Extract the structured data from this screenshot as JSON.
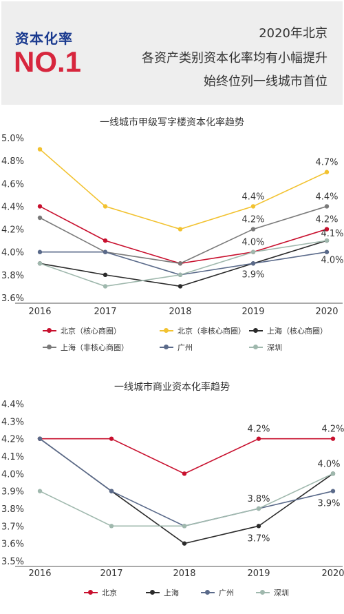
{
  "header": {
    "badge_title": "资本化率",
    "badge_rank": "NO.1",
    "lines": [
      "2020年北京",
      "各资产类别资本化率均有小幅提升",
      "始终位列一线城市首位"
    ]
  },
  "chart_data": [
    {
      "type": "line",
      "title": "一线城市甲级写字楼资本化率趋势",
      "categories": [
        "2016",
        "2017",
        "2018",
        "2019",
        "2020"
      ],
      "ylim": [
        3.6,
        5.0
      ],
      "yticks": [
        "5.0%",
        "4.8%",
        "4.6%",
        "4.4%",
        "4.2%",
        "4.0%",
        "3.8%",
        "3.6%"
      ],
      "grid": false,
      "legend_position": "bottom",
      "series": [
        {
          "name": "北京（核心商圈）",
          "color": "#c8102e",
          "values": [
            4.4,
            4.1,
            3.9,
            4.0,
            4.2
          ]
        },
        {
          "name": "北京（非核心商圈）",
          "color": "#f2c230",
          "values": [
            4.9,
            4.4,
            4.2,
            4.4,
            4.7
          ]
        },
        {
          "name": "上海（核心商圈）",
          "color": "#2b2b2b",
          "values": [
            3.9,
            3.8,
            3.7,
            3.9,
            4.1
          ]
        },
        {
          "name": "上海（非核心商圈）",
          "color": "#7a7a7a",
          "values": [
            4.3,
            4.0,
            3.9,
            4.2,
            4.4
          ]
        },
        {
          "name": "广州",
          "color": "#5a6a8a",
          "values": [
            4.0,
            4.0,
            3.8,
            3.9,
            4.0
          ]
        },
        {
          "name": "深圳",
          "color": "#9fb8ad",
          "values": [
            3.9,
            3.7,
            3.8,
            4.0,
            4.1
          ]
        }
      ],
      "labels": [
        {
          "text": "4.7%",
          "cat": 4,
          "val": 4.7
        },
        {
          "text": "4.4%",
          "cat": 3,
          "val": 4.4
        },
        {
          "text": "4.4%",
          "cat": 4,
          "val": 4.4
        },
        {
          "text": "4.2%",
          "cat": 3,
          "val": 4.2
        },
        {
          "text": "4.2%",
          "cat": 4,
          "val": 4.2
        },
        {
          "text": "4.0%",
          "cat": 3,
          "val": 4.0
        },
        {
          "text": "4.1%",
          "cat": 4,
          "val": 4.1
        },
        {
          "text": "4.0%",
          "cat": 4,
          "val": 4.0
        },
        {
          "text": "3.9%",
          "cat": 3,
          "val": 3.9
        }
      ]
    },
    {
      "type": "line",
      "title": "一线城市商业资本化率趋势",
      "categories": [
        "2016",
        "2017",
        "2018",
        "2019",
        "2020"
      ],
      "ylim": [
        3.5,
        4.4
      ],
      "yticks": [
        "4.4%",
        "4.3%",
        "4.2%",
        "4.1%",
        "4.0%",
        "3.9%",
        "3.8%",
        "3.7%",
        "3.6%",
        "3.5%"
      ],
      "grid": false,
      "legend_position": "bottom",
      "series": [
        {
          "name": "北京",
          "color": "#c8102e",
          "values": [
            4.2,
            4.2,
            4.0,
            4.2,
            4.2
          ]
        },
        {
          "name": "上海",
          "color": "#2b2b2b",
          "values": [
            4.2,
            3.9,
            3.6,
            3.7,
            4.0
          ]
        },
        {
          "name": "广州",
          "color": "#5a6a8a",
          "values": [
            4.2,
            3.9,
            3.7,
            3.8,
            3.9
          ]
        },
        {
          "name": "深圳",
          "color": "#9fb8ad",
          "values": [
            3.9,
            3.7,
            3.7,
            3.8,
            4.0
          ]
        }
      ],
      "labels": [
        {
          "text": "4.2%",
          "cat": 3,
          "val": 4.2
        },
        {
          "text": "4.2%",
          "cat": 4,
          "val": 4.2
        },
        {
          "text": "4.0%",
          "cat": 4,
          "val": 4.0
        },
        {
          "text": "3.8%",
          "cat": 3,
          "val": 3.8
        },
        {
          "text": "3.9%",
          "cat": 4,
          "val": 3.9
        },
        {
          "text": "3.7%",
          "cat": 3,
          "val": 3.7
        }
      ]
    }
  ]
}
